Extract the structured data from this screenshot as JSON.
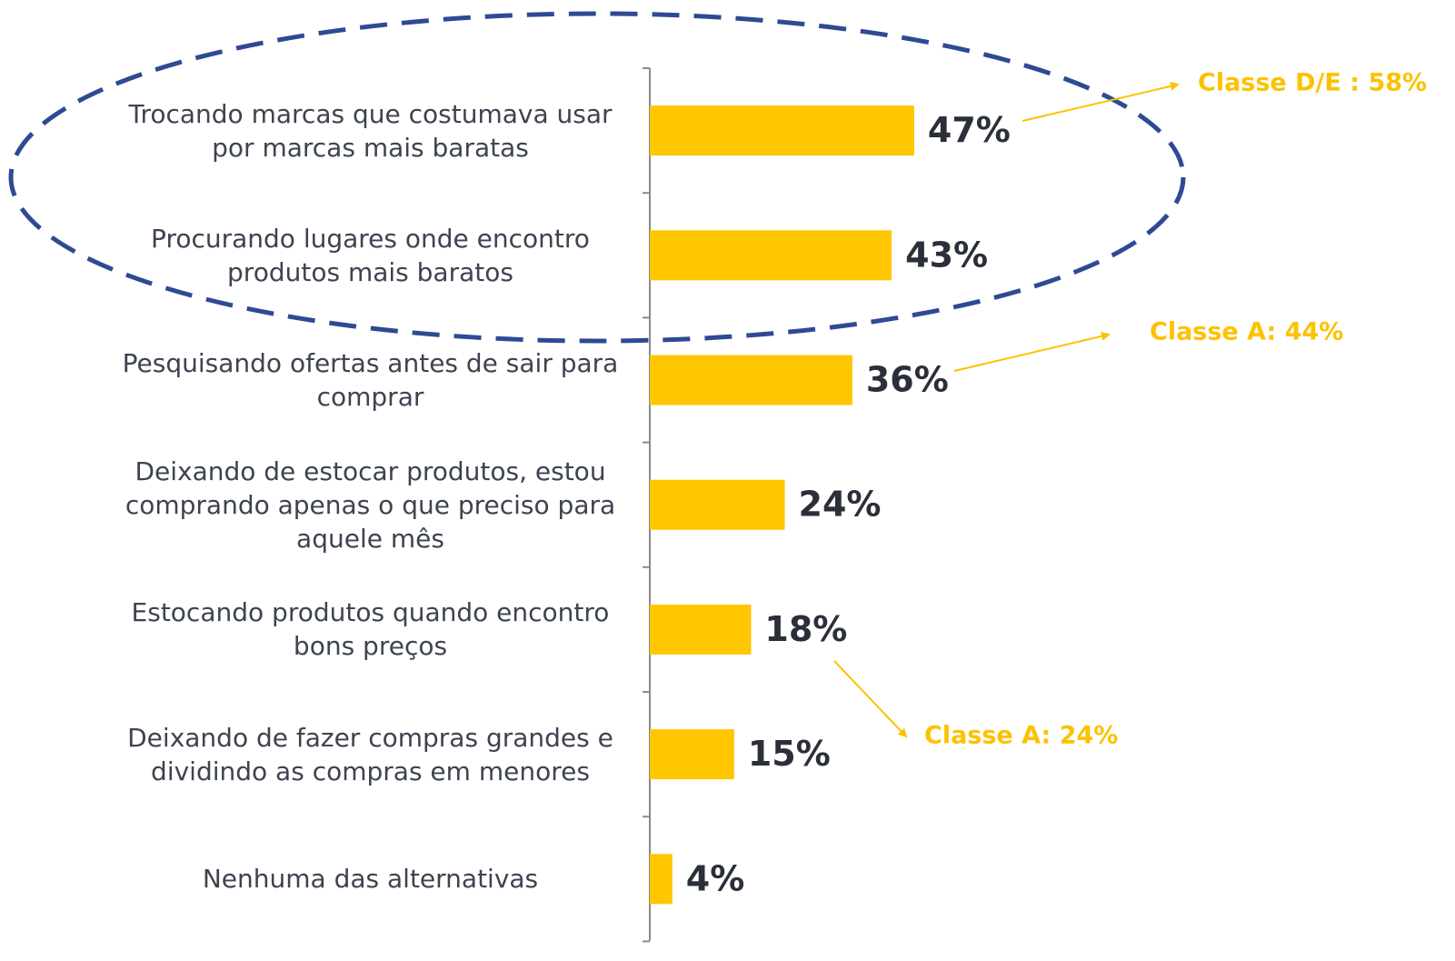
{
  "chart_data": {
    "type": "bar",
    "orientation": "horizontal",
    "categories": [
      "Trocando marcas que costumava usar por marcas mais baratas",
      "Procurando lugares onde encontro produtos mais baratos",
      "Pesquisando ofertas antes de sair para comprar",
      "Deixando de estocar produtos, estou comprando apenas o que preciso para aquele mês",
      "Estocando produtos quando encontro bons preços",
      "Deixando de fazer compras grandes e dividindo as compras em menores",
      "Nenhuma das alternativas"
    ],
    "values": [
      47,
      43,
      36,
      24,
      18,
      15,
      4
    ],
    "value_labels": [
      "47%",
      "43%",
      "36%",
      "24%",
      "18%",
      "15%",
      "4%"
    ],
    "color": "#ffc700",
    "annotations": [
      "Classe D/E : 58%",
      "Classe A: 44%",
      "Classe A: 24%"
    ],
    "annotation_color": "#fcc200"
  }
}
